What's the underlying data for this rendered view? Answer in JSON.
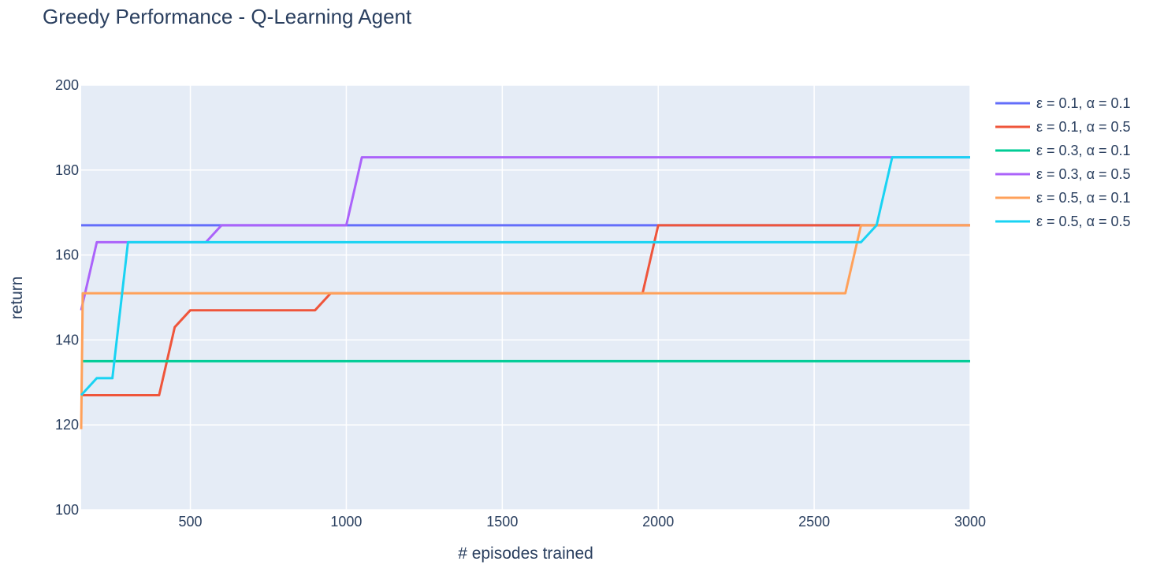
{
  "chart_data": {
    "type": "line",
    "title": "Greedy Performance - Q-Learning Agent",
    "xlabel": "# episodes trained",
    "ylabel": "return",
    "xlim": [
      150,
      3000
    ],
    "ylim": [
      100,
      200
    ],
    "xticks": [
      500,
      1000,
      1500,
      2000,
      2500,
      3000
    ],
    "yticks": [
      100,
      120,
      140,
      160,
      180,
      200
    ],
    "grid": true,
    "legend_position": "right",
    "series": [
      {
        "name": "ε = 0.1, α = 0.1",
        "color": "#636efa",
        "points": [
          [
            150,
            167
          ],
          [
            3000,
            167
          ]
        ]
      },
      {
        "name": "ε = 0.1, α = 0.5",
        "color": "#ef553b",
        "points": [
          [
            150,
            127
          ],
          [
            400,
            127
          ],
          [
            450,
            143
          ],
          [
            500,
            147
          ],
          [
            900,
            147
          ],
          [
            950,
            151
          ],
          [
            1950,
            151
          ],
          [
            2000,
            167
          ],
          [
            3000,
            167
          ]
        ]
      },
      {
        "name": "ε = 0.3, α = 0.1",
        "color": "#00cc96",
        "points": [
          [
            150,
            135
          ],
          [
            3000,
            135
          ]
        ]
      },
      {
        "name": "ε = 0.3, α = 0.5",
        "color": "#ab63fa",
        "points": [
          [
            150,
            147
          ],
          [
            200,
            163
          ],
          [
            550,
            163
          ],
          [
            600,
            167
          ],
          [
            1000,
            167
          ],
          [
            1050,
            183
          ],
          [
            2750,
            183
          ],
          [
            3000,
            183
          ]
        ]
      },
      {
        "name": "ε = 0.5, α = 0.1",
        "color": "#ffa15a",
        "points": [
          [
            150,
            119
          ],
          [
            155,
            151
          ],
          [
            2600,
            151
          ],
          [
            2650,
            167
          ],
          [
            3000,
            167
          ]
        ]
      },
      {
        "name": "ε = 0.5, α = 0.5",
        "color": "#19d3f3",
        "points": [
          [
            150,
            127
          ],
          [
            200,
            131
          ],
          [
            250,
            131
          ],
          [
            300,
            163
          ],
          [
            2650,
            163
          ],
          [
            2700,
            167
          ],
          [
            2750,
            183
          ],
          [
            3000,
            183
          ]
        ]
      }
    ]
  }
}
